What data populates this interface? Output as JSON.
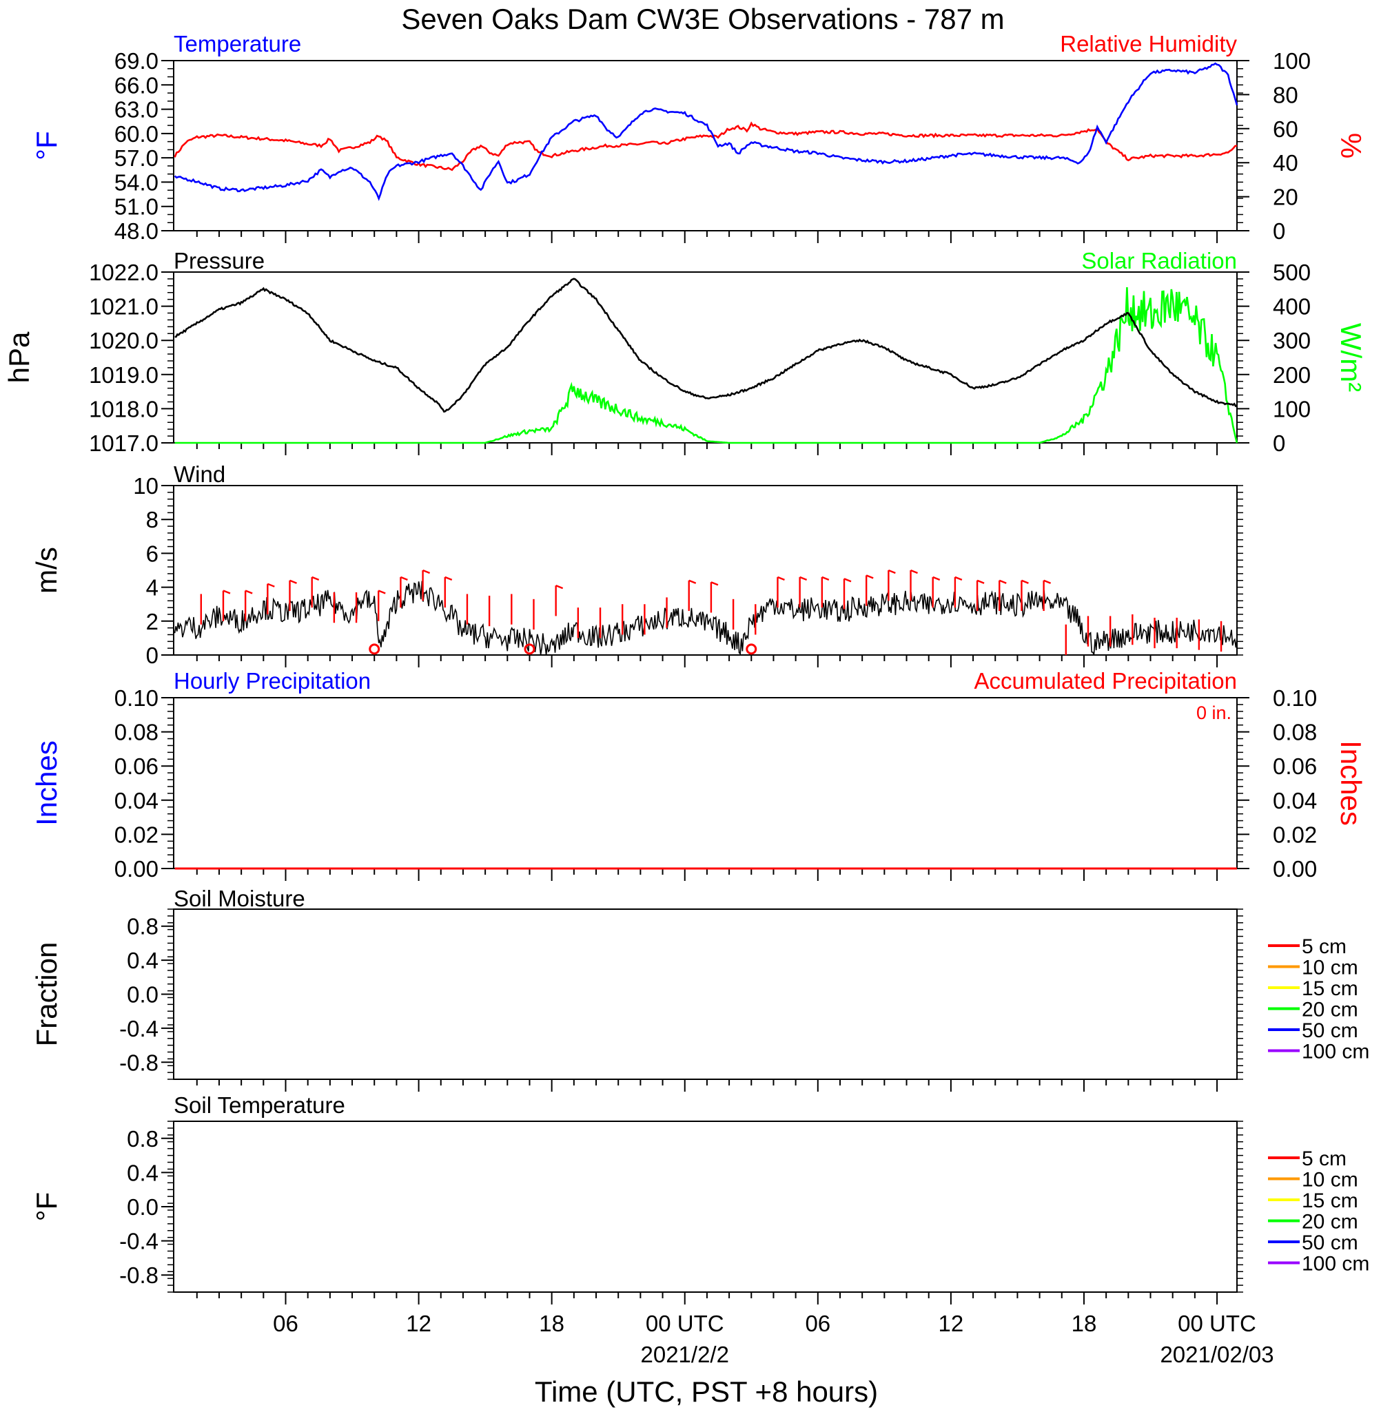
{
  "title": "Seven Oaks Dam CW3E Observations - 787 m",
  "xaxis": {
    "label": "Time (UTC, PST +8 hours)",
    "tick_labels": [
      "06",
      "12",
      "18",
      "00 UTC",
      "06",
      "12",
      "18",
      "00 UTC"
    ],
    "tick_hours": [
      6,
      12,
      18,
      24,
      30,
      36,
      42,
      48
    ],
    "date_labels": [
      {
        "text": "2021/2/2",
        "hour": 24
      },
      {
        "text": "2021/02/03",
        "hour": 48
      }
    ],
    "range_hours": [
      0.95,
      48.9
    ]
  },
  "colors": {
    "temperature": "#0000ff",
    "humidity": "#ff0000",
    "pressure": "#000000",
    "solar": "#00ff00",
    "wind": "#000000",
    "barbs": "#ff0000",
    "hourly_precip": "#0000ff",
    "accum_precip": "#ff0000",
    "soil": [
      "#ff0000",
      "#ff9900",
      "#ffff00",
      "#00ff00",
      "#0000ff",
      "#9900ff"
    ]
  },
  "chart_data": [
    {
      "type": "line",
      "title_left": "Temperature",
      "title_right": "Relative Humidity",
      "ylabel_left": "°F",
      "ylabel_right": "%",
      "ylim_left": [
        48,
        69
      ],
      "yticks_left": [
        "69.0",
        "66.0",
        "63.0",
        "60.0",
        "57.0",
        "54.0",
        "51.0",
        "48.0"
      ],
      "ylim_right": [
        0,
        100
      ],
      "yticks_right": [
        "100",
        "80",
        "60",
        "40",
        "20",
        "0"
      ],
      "x_hours": [
        1,
        1.5,
        2,
        3,
        4,
        5,
        6,
        7,
        7.6,
        8,
        8.4,
        9,
        9.8,
        10.2,
        10.6,
        11,
        12,
        13,
        13.5,
        14,
        14.4,
        14.8,
        15.2,
        15.6,
        16,
        16.4,
        17,
        17.4,
        18,
        19,
        20,
        20.5,
        21,
        22,
        22.5,
        23,
        24,
        25,
        25.5,
        26,
        26.4,
        26.8,
        27,
        27.4,
        28,
        29,
        30,
        31,
        32,
        33,
        34,
        35,
        36,
        37,
        38,
        39,
        40,
        41,
        41.8,
        42.2,
        42.6,
        43,
        44,
        45,
        46,
        47,
        48,
        48.5,
        48.9
      ],
      "series": [
        {
          "name": "Temperature",
          "axis": "left",
          "values": [
            54.6,
            54.4,
            54.1,
            53.2,
            53.0,
            53.3,
            53.6,
            54.2,
            55.5,
            54.6,
            55.4,
            55.8,
            54.0,
            52.0,
            55.0,
            56.0,
            56.5,
            57.3,
            57.6,
            56.0,
            54.5,
            53.0,
            55.0,
            56.6,
            53.9,
            54.2,
            55.0,
            57.0,
            59.5,
            61.5,
            62.3,
            60.5,
            59.5,
            62.5,
            63.0,
            62.8,
            62.5,
            61.0,
            58.5,
            58.8,
            57.5,
            58.5,
            58.9,
            58.6,
            58.3,
            57.8,
            57.6,
            57.0,
            56.7,
            56.5,
            56.6,
            56.9,
            57.3,
            57.5,
            57.3,
            57.1,
            57.0,
            57.0,
            56.4,
            57.5,
            60.8,
            59.0,
            64.0,
            67.5,
            67.8,
            67.5,
            68.6,
            67.2,
            63.5
          ]
        },
        {
          "name": "Relative Humidity",
          "axis": "right",
          "values": [
            44,
            52,
            55,
            56,
            55,
            54,
            53,
            51,
            50,
            54,
            47,
            49,
            52,
            56,
            52,
            43,
            39,
            37,
            36,
            41,
            47,
            50,
            46,
            44,
            51,
            52,
            52,
            46,
            44,
            47,
            49,
            50,
            50,
            51,
            52,
            51,
            54,
            56,
            55,
            60,
            61,
            59,
            63,
            60,
            58,
            57,
            58,
            58,
            57,
            57,
            56,
            56,
            56,
            56,
            56,
            56,
            56,
            56,
            58,
            59,
            60,
            52,
            42,
            44,
            44,
            44,
            45,
            46,
            50
          ]
        }
      ]
    },
    {
      "type": "line",
      "title_left": "Pressure",
      "title_right": "Solar Radiation",
      "ylabel_left": "hPa",
      "ylabel_right": "W/m²",
      "ylim_left": [
        1017.0,
        1022.0
      ],
      "yticks_left": [
        "1022.0",
        "1021.0",
        "1020.0",
        "1019.0",
        "1018.0",
        "1017.0"
      ],
      "ylim_right": [
        0,
        500
      ],
      "yticks_right": [
        "500",
        "400",
        "300",
        "200",
        "100",
        "0"
      ],
      "x_hours": [
        1,
        2,
        3,
        4,
        5,
        6,
        7,
        8,
        9,
        10,
        11,
        12,
        12.8,
        13.2,
        14,
        15,
        16,
        17,
        18,
        19,
        20,
        21,
        22,
        23,
        24,
        25,
        26,
        27,
        28,
        29,
        30,
        31,
        32,
        33,
        34,
        35,
        36,
        37,
        38,
        39,
        40,
        41,
        42,
        43,
        44,
        45,
        46,
        47,
        48,
        48.9
      ],
      "series": [
        {
          "name": "Pressure",
          "axis": "left",
          "values": [
            1020.1,
            1020.5,
            1020.9,
            1021.1,
            1021.5,
            1021.2,
            1020.8,
            1020.0,
            1019.7,
            1019.4,
            1019.2,
            1018.6,
            1018.2,
            1017.9,
            1018.4,
            1019.3,
            1019.8,
            1020.6,
            1021.3,
            1021.8,
            1021.2,
            1020.3,
            1019.4,
            1018.9,
            1018.5,
            1018.3,
            1018.4,
            1018.6,
            1018.9,
            1019.3,
            1019.7,
            1019.9,
            1020.0,
            1019.8,
            1019.4,
            1019.2,
            1019.0,
            1018.6,
            1018.7,
            1018.9,
            1019.3,
            1019.7,
            1020.0,
            1020.5,
            1020.8,
            1019.7,
            1019.0,
            1018.5,
            1018.2,
            1018.1
          ]
        },
        {
          "name": "Solar Radiation",
          "axis": "right",
          "values": [
            0,
            0,
            0,
            0,
            0,
            0,
            0,
            0,
            0,
            0,
            0,
            0,
            0,
            0,
            0,
            0,
            20,
            35,
            40,
            160,
            120,
            100,
            70,
            60,
            40,
            5,
            0,
            0,
            0,
            0,
            0,
            0,
            0,
            0,
            0,
            0,
            0,
            0,
            0,
            0,
            0,
            20,
            70,
            200,
            400,
            370,
            410,
            350,
            250,
            0
          ]
        }
      ]
    },
    {
      "type": "line",
      "title_left": "Wind",
      "ylabel_left": "m/s",
      "ylim_left": [
        0,
        10
      ],
      "yticks_left": [
        "10",
        "8",
        "6",
        "4",
        "2",
        "0"
      ],
      "x_hours": [
        1,
        1.5,
        2,
        3,
        4,
        5,
        6,
        7,
        8,
        9,
        9.5,
        10,
        10.3,
        11,
        12,
        13,
        14,
        15,
        16,
        17,
        18,
        19,
        20,
        21,
        22,
        23,
        24,
        25,
        26,
        26.5,
        27,
        28,
        29,
        30,
        31,
        32,
        33,
        34,
        35,
        36,
        37,
        38,
        39,
        40,
        41,
        41.7,
        42,
        42.5,
        43,
        44,
        45,
        46,
        47,
        48,
        48.9
      ],
      "series": [
        {
          "name": "Wind",
          "values": [
            1.2,
            1.8,
            1.6,
            2.3,
            2.0,
            2.8,
            2.5,
            2.7,
            3.2,
            2.4,
            3.4,
            2.9,
            0.5,
            3.3,
            3.8,
            3.1,
            1.4,
            1.1,
            0.9,
            0.9,
            0.4,
            1.5,
            1.0,
            1.3,
            1.7,
            2.1,
            2.3,
            1.8,
            1.2,
            0.6,
            2.0,
            3.1,
            2.6,
            2.8,
            2.5,
            2.9,
            3.0,
            3.1,
            2.9,
            3.2,
            3.0,
            3.1,
            2.9,
            3.2,
            2.9,
            2.1,
            1.1,
            0.6,
            0.9,
            1.2,
            1.4,
            1.3,
            1.5,
            1.4,
            1.0
          ]
        }
      ],
      "barbs": {
        "x_hours": [
          2,
          3,
          4,
          5,
          6,
          7,
          8,
          9,
          10,
          11,
          12,
          13,
          14,
          15,
          16,
          17,
          18,
          19,
          20,
          21,
          22,
          23,
          24,
          25,
          26,
          27,
          28,
          29,
          30,
          31,
          32,
          33,
          34,
          35,
          36,
          37,
          38,
          39,
          40,
          41,
          42,
          43,
          44,
          45,
          46,
          47,
          48
        ],
        "speeds": [
          3.6,
          3.8,
          3.8,
          4.2,
          4.4,
          4.6,
          3.7,
          3.7,
          3.8,
          4.6,
          5.0,
          4.6,
          3.6,
          3.5,
          3.6,
          3.3,
          4.1,
          2.8,
          2.8,
          3.0,
          3.0,
          3.4,
          4.4,
          4.3,
          3.3,
          3.0,
          4.6,
          4.6,
          4.6,
          4.5,
          4.7,
          5.0,
          5.0,
          4.6,
          4.6,
          4.4,
          4.4,
          4.4,
          4.4,
          1.8,
          2.3,
          2.3,
          2.4,
          2.2,
          2.2,
          2.1,
          2.0
        ]
      },
      "calm_markers_hours": [
        10.0,
        17.0,
        27.0
      ]
    },
    {
      "type": "line",
      "title_left": "Hourly Precipitation",
      "title_right": "Accumulated Precipitation",
      "annotation": "0 in.",
      "ylabel_left": "Inches",
      "ylabel_right": "Inches",
      "ylim_left": [
        0,
        0.1
      ],
      "yticks_left": [
        "0.10",
        "0.08",
        "0.06",
        "0.04",
        "0.02",
        "0.00"
      ],
      "ylim_right": [
        0,
        0.1
      ],
      "yticks_right": [
        "0.10",
        "0.08",
        "0.06",
        "0.04",
        "0.02",
        "0.00"
      ],
      "x_hours": [
        1,
        48.9
      ],
      "series": [
        {
          "name": "Hourly Precipitation",
          "values": [
            0,
            0
          ]
        },
        {
          "name": "Accumulated Precipitation",
          "values": [
            0,
            0
          ]
        }
      ]
    },
    {
      "type": "line",
      "title_left": "Soil Moisture",
      "ylabel_left": "Fraction",
      "ylim_left": [
        -1.0,
        1.0
      ],
      "yticks_left": [
        "0.8",
        "0.4",
        "0.0",
        "-0.4",
        "-0.8"
      ],
      "legend": [
        "5 cm",
        "10 cm",
        "15 cm",
        "20 cm",
        "50 cm",
        "100 cm"
      ],
      "series": []
    },
    {
      "type": "line",
      "title_left": "Soil Temperature",
      "ylabel_left": "°F",
      "ylim_left": [
        -1.0,
        1.0
      ],
      "yticks_left": [
        "0.8",
        "0.4",
        "0.0",
        "-0.4",
        "-0.8"
      ],
      "legend": [
        "5 cm",
        "10 cm",
        "15 cm",
        "20 cm",
        "50 cm",
        "100 cm"
      ],
      "series": []
    }
  ]
}
